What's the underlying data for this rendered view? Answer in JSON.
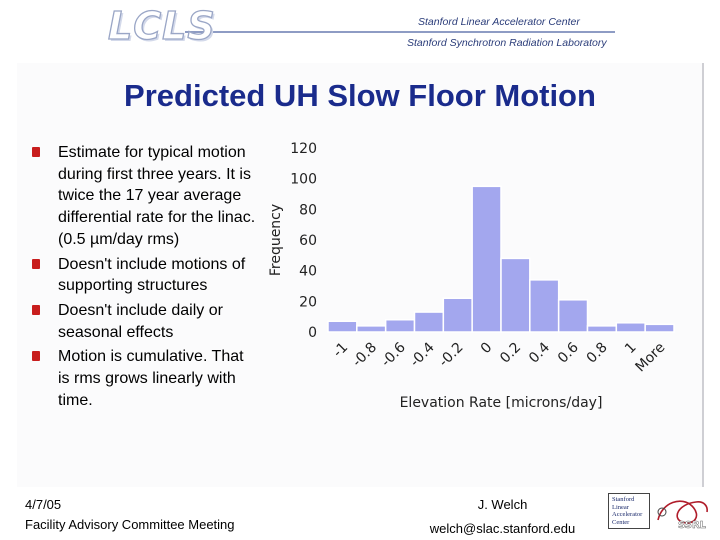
{
  "header": {
    "logo_text": "LCLS",
    "org_line1": "Stanford Linear Accelerator Center",
    "org_line2": "Stanford Synchrotron Radiation Laboratory"
  },
  "slide": {
    "title": "Predicted UH Slow Floor Motion",
    "bullets": [
      "Estimate for typical motion during first three years. It is twice the 17 year average differential rate for the linac. (0.5 µm/day rms)",
      "Doesn't include motions of supporting structures",
      "Doesn't include daily or seasonal effects",
      "Motion is cumulative. That is rms grows linearly with time."
    ]
  },
  "footer": {
    "date": "4/7/05",
    "meeting": "Facility Advisory Committee Meeting",
    "author": "J. Welch",
    "email": "welch@slac.stanford.edu",
    "slac_logo_text": [
      "Stanford",
      "Linear",
      "Accelerator",
      "Center"
    ],
    "ssrl_logo_text": "SSRL"
  },
  "chart_data": {
    "type": "bar",
    "xlabel": "Elevation Rate [microns/day]",
    "ylabel": "Frequency",
    "ylim": [
      0,
      120
    ],
    "yticks": [
      0,
      20,
      40,
      60,
      80,
      100,
      120
    ],
    "x_tick_labels": [
      "-1",
      "-0.8",
      "-0.6",
      "-0.4",
      "-0.2",
      "0",
      "0.2",
      "0.4",
      "0.6",
      "0.8",
      "1",
      "More"
    ],
    "values": [
      7,
      4,
      8,
      13,
      22,
      95,
      48,
      34,
      21,
      4,
      6,
      5
    ],
    "bar_color": "#a3a7ee",
    "grid": false
  }
}
